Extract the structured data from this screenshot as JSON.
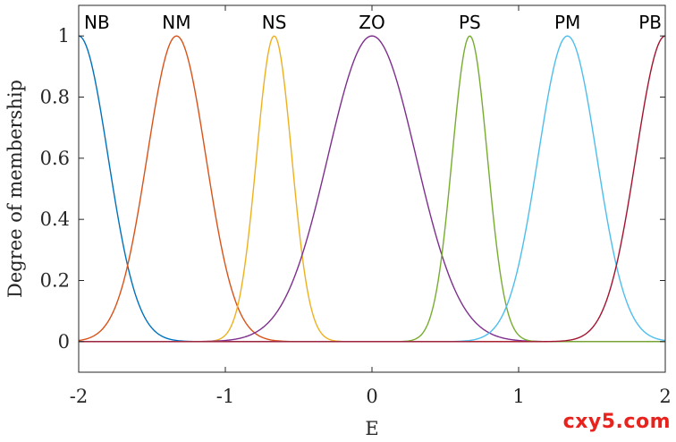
{
  "chart_data": {
    "type": "line",
    "xlabel": "E",
    "ylabel": "Degree of membership",
    "xlim": [
      -2,
      2
    ],
    "ylim": [
      -0.1,
      1.1
    ],
    "xticks": [
      -2,
      -1,
      0,
      1,
      2
    ],
    "xtick_labels": [
      "-2",
      "-1",
      "0",
      "1",
      "2"
    ],
    "yticks": [
      0,
      0.2,
      0.4,
      0.6,
      0.8,
      1
    ],
    "ytick_labels": [
      "0",
      "0.2",
      "0.4",
      "0.6",
      "0.8",
      "1"
    ],
    "grid": false,
    "series": [
      {
        "name": "NB",
        "shape": "gaussian",
        "center": -2.0,
        "sigma": 0.2,
        "color": "#0072BD"
      },
      {
        "name": "NM",
        "shape": "gaussian",
        "center": -1.333,
        "sigma": 0.2,
        "color": "#D95319"
      },
      {
        "name": "NS",
        "shape": "gaussian",
        "center": -0.667,
        "sigma": 0.12,
        "color": "#EDB120"
      },
      {
        "name": "ZO",
        "shape": "gaussian",
        "center": 0.0,
        "sigma": 0.3,
        "color": "#7E2F8E"
      },
      {
        "name": "PS",
        "shape": "gaussian",
        "center": 0.667,
        "sigma": 0.12,
        "color": "#77AC30"
      },
      {
        "name": "PM",
        "shape": "gaussian",
        "center": 1.333,
        "sigma": 0.2,
        "color": "#4DBEEE"
      },
      {
        "name": "PB",
        "shape": "gaussian",
        "center": 2.0,
        "sigma": 0.2,
        "color": "#A2142F"
      }
    ]
  },
  "watermark": "cxy5.com"
}
